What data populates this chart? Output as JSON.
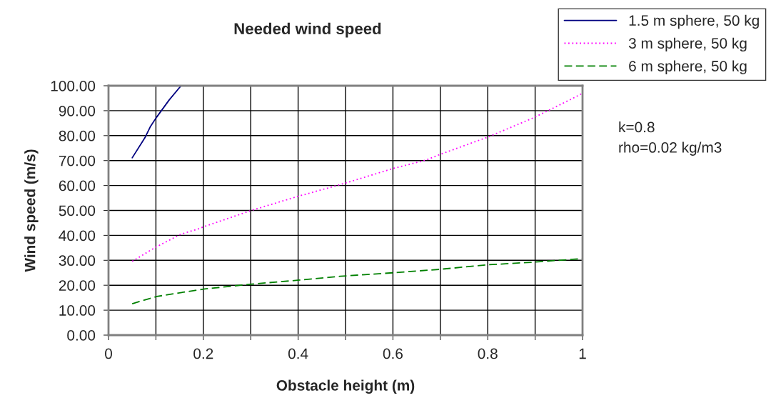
{
  "chart_data": {
    "type": "line",
    "title": "Needed wind speed",
    "xlabel": "Obstacle height (m)",
    "ylabel": "Wind speed (m/s)",
    "series": [
      {
        "name": "1.5 m sphere, 50 kg",
        "color": "#000080",
        "line_style": "solid",
        "x": [
          0.05,
          0.077,
          0.088,
          0.1,
          0.128,
          0.153
        ],
        "values": [
          71.1,
          79.2,
          83.5,
          87,
          94.3,
          100
        ]
      },
      {
        "name": "3 m sphere, 50 kg",
        "color": "#ff00ff",
        "line_style": "dotted",
        "x": [
          0.05,
          0.1,
          0.153,
          0.188,
          0.203,
          0.303,
          0.399,
          0.497,
          0.6,
          0.67,
          0.7,
          0.8,
          0.896,
          0.976,
          1.0
        ],
        "values": [
          29.6,
          35.3,
          40.5,
          42.5,
          43.6,
          50.1,
          55.6,
          60.8,
          66.8,
          70.2,
          72.5,
          79.4,
          87.1,
          94.6,
          97
        ]
      },
      {
        "name": "6 m sphere, 50 kg",
        "color": "#008000",
        "line_style": "dashed",
        "x": [
          0.05,
          0.102,
          0.158,
          0.203,
          0.298,
          0.399,
          0.489,
          0.6,
          0.7,
          0.8,
          0.9,
          1.0
        ],
        "values": [
          12.6,
          15.5,
          17.2,
          18.5,
          20.4,
          22,
          23.6,
          25,
          26.4,
          28.2,
          29.3,
          30.7
        ]
      }
    ],
    "xlim": [
      0,
      1
    ],
    "xticks": [
      0,
      {
        "value": 0.1,
        "label": null
      },
      0.2,
      {
        "value": 0.3,
        "label": null
      },
      0.4,
      {
        "value": 0.5,
        "label": null
      },
      0.6,
      {
        "value": 0.7,
        "label": null
      },
      0.8,
      {
        "value": 0.9,
        "label": null
      },
      1
    ],
    "ylim": [
      0,
      100
    ],
    "yticks": [
      {
        "value": 0,
        "label": "0.00"
      },
      {
        "value": 10,
        "label": "10.00"
      },
      {
        "value": 20,
        "label": "20.00"
      },
      {
        "value": 30,
        "label": "30.00"
      },
      {
        "value": 40,
        "label": "40.00"
      },
      {
        "value": 50,
        "label": "50.00"
      },
      {
        "value": 60,
        "label": "60.00"
      },
      {
        "value": 70,
        "label": "70.00"
      },
      {
        "value": 80,
        "label": "80.00"
      },
      {
        "value": 90,
        "label": "90.00"
      },
      {
        "value": 100,
        "label": "100.00"
      }
    ],
    "grid": true,
    "legend": "top right",
    "marker": "none",
    "annotations": [
      "k=0.8\nrho=0.02 kg/m3"
    ]
  }
}
